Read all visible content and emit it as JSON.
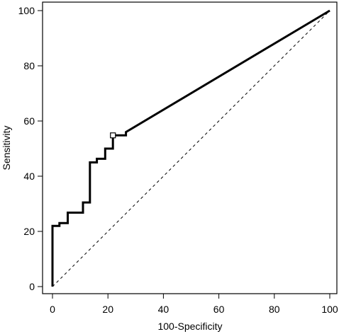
{
  "chart_data": {
    "type": "line",
    "title": "",
    "xlabel": "100-Specificity",
    "ylabel": "Sensitivity",
    "xlim": [
      0,
      100
    ],
    "ylim": [
      0,
      100
    ],
    "xticks": [
      "0",
      "20",
      "40",
      "60",
      "80",
      "100"
    ],
    "yticks": [
      "0",
      "20",
      "40",
      "60",
      "80",
      "100"
    ],
    "grid": false,
    "legend": "none",
    "series": [
      {
        "style": "solid",
        "points": [
          [
            0,
            0
          ],
          [
            0,
            22
          ],
          [
            2.5,
            22
          ],
          [
            2.5,
            23
          ],
          [
            5.5,
            23
          ],
          [
            5.5,
            26.8
          ],
          [
            11,
            26.8
          ],
          [
            11,
            30.5
          ],
          [
            13.5,
            30.5
          ],
          [
            13.5,
            45
          ],
          [
            16,
            45
          ],
          [
            16,
            46.3
          ],
          [
            19,
            46.3
          ],
          [
            19,
            50
          ],
          [
            21.8,
            50
          ],
          [
            21.8,
            54.8
          ],
          [
            26.5,
            54.8
          ],
          [
            26.5,
            56
          ],
          [
            100,
            100
          ]
        ]
      },
      {
        "style": "dashed",
        "points": [
          [
            0,
            0
          ],
          [
            100,
            100
          ]
        ]
      }
    ],
    "marker": {
      "shape": "square",
      "x": 21.8,
      "y": 54.8
    }
  },
  "colors": {
    "line": "#000000",
    "background": "#ffffff"
  }
}
